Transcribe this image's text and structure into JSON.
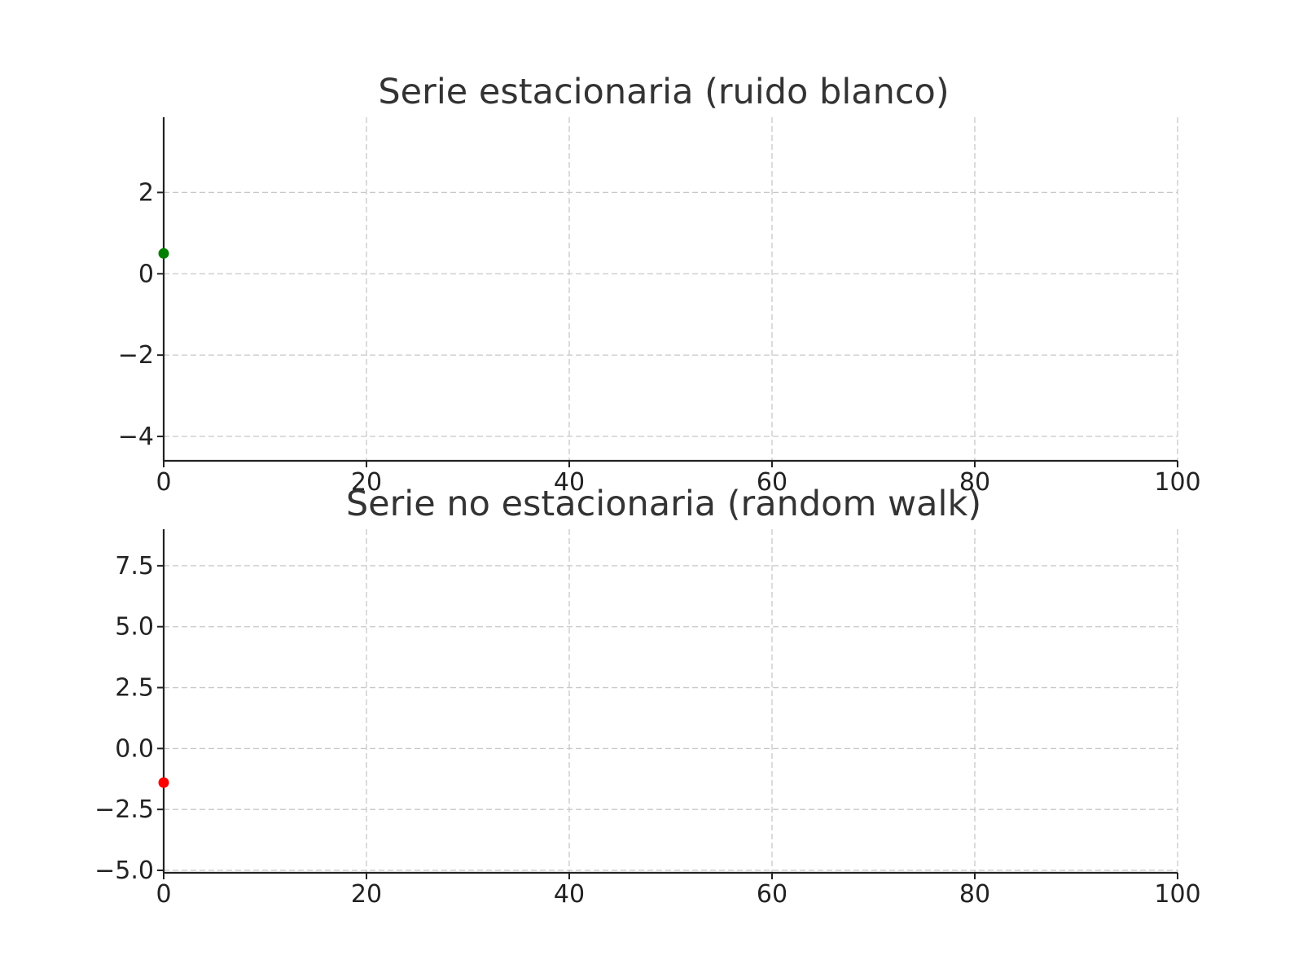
{
  "chart_data": [
    {
      "type": "scatter",
      "title": "Serie estacionaria (ruido blanco)",
      "xlabel": "",
      "ylabel": "",
      "xlim": [
        0,
        100
      ],
      "ylim": [
        -4.6,
        3.85
      ],
      "xticks": [
        0,
        20,
        40,
        60,
        80,
        100
      ],
      "xtick_labels": [
        "0",
        "20",
        "40",
        "60",
        "80",
        "100"
      ],
      "yticks": [
        2,
        0,
        -2,
        -4
      ],
      "ytick_labels": [
        "2",
        "0",
        "−2",
        "−4"
      ],
      "grid": true,
      "legend": "none",
      "series": [
        {
          "color": "#008000",
          "points": [
            {
              "x": 0,
              "y": 0.5
            }
          ]
        }
      ]
    },
    {
      "type": "scatter",
      "title": "Serie no estacionaria (random walk)",
      "xlabel": "",
      "ylabel": "",
      "xlim": [
        0,
        100
      ],
      "ylim": [
        -5.1,
        9.0
      ],
      "xticks": [
        0,
        20,
        40,
        60,
        80,
        100
      ],
      "xtick_labels": [
        "0",
        "20",
        "40",
        "60",
        "80",
        "100"
      ],
      "yticks": [
        7.5,
        5.0,
        2.5,
        0.0,
        -2.5,
        -5.0
      ],
      "ytick_labels": [
        "7.5",
        "5.0",
        "2.5",
        "0.0",
        "−2.5",
        "−5.0"
      ],
      "grid": true,
      "legend": "none",
      "series": [
        {
          "color": "#ff0000",
          "points": [
            {
              "x": 0,
              "y": -1.4
            }
          ]
        }
      ]
    }
  ]
}
